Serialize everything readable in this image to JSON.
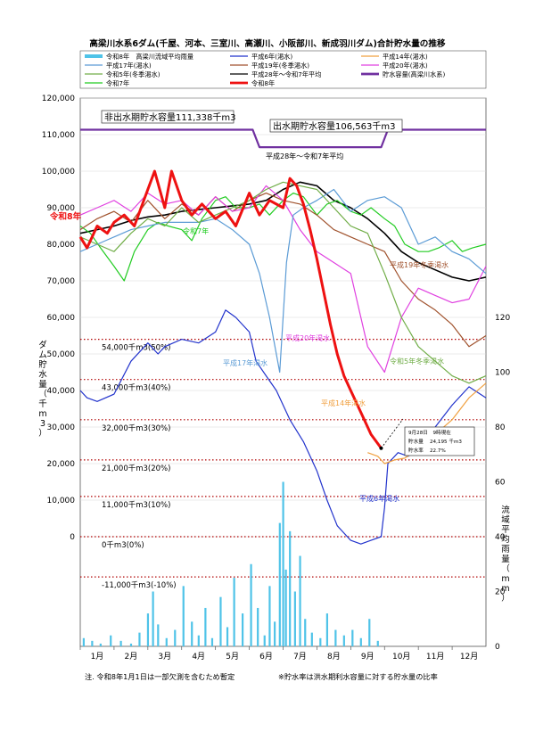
{
  "title": "高梁川水系6ダム(千屋、河本、三室川、高瀬川、小阪部川、新成羽川ダム)合計貯水量の推移",
  "legend": [
    {
      "label": "令和8年　高梁川流域平均雨量",
      "color": "#4fc3e8",
      "kind": "bar"
    },
    {
      "label": "平成6年(渇水)",
      "color": "#2233cc",
      "kind": "line"
    },
    {
      "label": "平成14年(渇水)",
      "color": "#f0a040",
      "kind": "line"
    },
    {
      "label": "平成17年(渇水)",
      "color": "#5b9bd5",
      "kind": "line"
    },
    {
      "label": "平成19年(冬季渇水)",
      "color": "#a0522d",
      "kind": "line"
    },
    {
      "label": "平成20年(渇水)",
      "color": "#e040e0",
      "kind": "line"
    },
    {
      "label": "令和5年(冬季渇水)",
      "color": "#70ad47",
      "kind": "line"
    },
    {
      "label": "平成28年～令和7年平均",
      "color": "#000000",
      "kind": "line"
    },
    {
      "label": "貯水容量(高梁川水系)",
      "color": "#7030a0",
      "kind": "line"
    },
    {
      "label": "令和7年",
      "color": "#22cc22",
      "kind": "line"
    },
    {
      "label": "令和8年",
      "color": "#ee1111",
      "kind": "line"
    }
  ],
  "capacity_labels": {
    "non_flood": "非出水期貯水容量111,338千m3",
    "flood": "出水期貯水容量106,563千m3"
  },
  "annotations": {
    "r8": "令和8年",
    "r7": "令和7年",
    "avg": "平成28年～令和7年平均",
    "h19": "平成19年冬季渇水",
    "h20": "平成20年渇水",
    "h17": "平成17年渇水",
    "r5": "令和5年冬季渇水",
    "h14": "平成14年渇水",
    "h6": "平成6年渇水"
  },
  "percent_lines": [
    {
      "value": 54000,
      "label": "54,000千m3(50%)"
    },
    {
      "value": 43000,
      "label": "43,000千m3(40%)"
    },
    {
      "value": 32000,
      "label": "32,000千m3(30%)"
    },
    {
      "value": 21000,
      "label": "21,000千m3(20%)"
    },
    {
      "value": 11000,
      "label": "11,000千m3(10%)"
    },
    {
      "value": 0,
      "label": "0千m3(0%)"
    },
    {
      "value": -11000,
      "label": "-11,000千m3(-10%)"
    }
  ],
  "info_box": {
    "date_line": "9月28日　9時現在",
    "storage_label": "貯水量",
    "storage_value": "24,195 千m3",
    "rate_label": "貯水率",
    "rate_value": "22.7%"
  },
  "y_left_label": "ダム貯水量（千m3）",
  "y_right_label": "流域平均雨量（mm）",
  "notes": {
    "left": "注. 令和8年1月1日は一部欠測を含むため暫定",
    "right": "※貯水率は洪水期利水容量に対する貯水量の比率"
  },
  "chart_data": {
    "type": "line",
    "title": "高梁川水系6ダム(千屋、河本、三室川、高瀬川、小阪部川、新成羽川ダム)合計貯水量の推移",
    "x_ticks": [
      "1月",
      "2月",
      "3月",
      "4月",
      "5月",
      "6月",
      "7月",
      "8月",
      "9月",
      "10月",
      "11月",
      "12月"
    ],
    "x_unit": "month (1.0 = Jan 1)",
    "y_left_ticks": [
      120000,
      110000,
      100000,
      90000,
      80000,
      70000,
      60000,
      50000,
      40000,
      30000,
      20000,
      10000,
      0
    ],
    "y_left_lim": [
      -30000,
      120000
    ],
    "y_right_ticks": [
      0,
      20,
      40,
      60,
      80,
      100,
      120
    ],
    "y_right_lim": [
      0,
      200
    ],
    "series": [
      {
        "name": "貯水容量(高梁川水系)",
        "color": "#7030a0",
        "width": 2.2,
        "x": [
          1,
          6.1,
          6.3,
          9.9,
          10.1,
          13
        ],
        "y": [
          111338,
          111338,
          106563,
          106563,
          111338,
          111338
        ]
      },
      {
        "name": "平成28年～令和7年平均",
        "color": "#000000",
        "width": 1.6,
        "x": [
          1,
          1.5,
          2,
          2.5,
          3,
          3.5,
          4,
          4.5,
          5,
          5.5,
          6,
          6.5,
          7,
          7.5,
          8,
          8.5,
          9,
          9.5,
          10,
          10.5,
          11,
          11.5,
          12,
          12.5,
          13
        ],
        "y": [
          83000,
          84000,
          85000,
          86500,
          87500,
          88000,
          89000,
          89500,
          90000,
          90500,
          91000,
          92000,
          95000,
          97000,
          96000,
          92000,
          90000,
          87000,
          83000,
          78000,
          75000,
          73000,
          71000,
          70000,
          71000
        ]
      },
      {
        "name": "令和7年",
        "color": "#22cc22",
        "width": 1.2,
        "x": [
          1,
          1.3,
          1.6,
          2,
          2.3,
          2.6,
          3,
          3.3,
          3.6,
          4,
          4.3,
          4.6,
          5,
          5.3,
          5.6,
          6,
          6.3,
          6.6,
          7,
          7.3,
          7.6,
          8,
          8.3,
          8.6,
          9,
          9.3,
          9.6,
          10,
          10.3,
          10.6,
          11,
          11.3,
          11.6,
          12,
          12.3,
          12.6,
          13
        ],
        "y": [
          85000,
          83000,
          79000,
          74000,
          70000,
          78000,
          84000,
          86000,
          85000,
          84000,
          81000,
          87000,
          92000,
          93000,
          90000,
          90000,
          91000,
          88000,
          92000,
          94000,
          93000,
          88000,
          91000,
          92000,
          89000,
          88000,
          90000,
          87000,
          85000,
          80000,
          78000,
          78000,
          79000,
          81000,
          78000,
          79000,
          80000
        ]
      },
      {
        "name": "平成19年(冬季渇水)",
        "color": "#a0522d",
        "width": 1.2,
        "x": [
          1,
          1.5,
          2,
          2.5,
          3,
          3.5,
          4,
          4.5,
          5,
          5.5,
          6,
          6.5,
          7,
          7.5,
          8,
          8.5,
          9,
          9.5,
          10,
          10.5,
          11,
          11.5,
          12,
          12.5,
          13
        ],
        "y": [
          84000,
          87000,
          89000,
          86000,
          92000,
          87000,
          91000,
          88000,
          93000,
          89000,
          92000,
          94000,
          92000,
          91000,
          88000,
          84000,
          82000,
          80000,
          78000,
          70000,
          65000,
          62000,
          58000,
          52000,
          55000
        ]
      },
      {
        "name": "平成20年(渇水)",
        "color": "#e040e0",
        "width": 1.2,
        "x": [
          1,
          1.5,
          2,
          2.5,
          3,
          3.5,
          4,
          4.5,
          5,
          5.5,
          6,
          6.5,
          7,
          7.5,
          8,
          8.5,
          9,
          9.5,
          10,
          10.5,
          11,
          11.5,
          12,
          12.5,
          13
        ],
        "y": [
          88000,
          90000,
          92000,
          89000,
          94000,
          91000,
          92000,
          88000,
          93000,
          89000,
          90000,
          96000,
          92000,
          84000,
          78000,
          75000,
          72000,
          52000,
          45000,
          60000,
          68000,
          66000,
          64000,
          65000,
          74000
        ]
      },
      {
        "name": "平成17年(渇水)",
        "color": "#5b9bd5",
        "width": 1.2,
        "x": [
          1,
          1.5,
          2,
          2.5,
          3,
          3.5,
          4,
          4.5,
          5,
          5.5,
          6,
          6.3,
          6.6,
          6.9,
          7.1,
          7.3,
          7.6,
          8,
          8.5,
          9,
          9.5,
          10,
          10.5,
          11,
          11.5,
          12,
          12.5,
          13
        ],
        "y": [
          78000,
          80000,
          82000,
          84000,
          85000,
          86000,
          86000,
          86000,
          87000,
          84000,
          80000,
          72000,
          60000,
          45000,
          75000,
          88000,
          90000,
          92000,
          95000,
          89000,
          92000,
          93000,
          90000,
          80000,
          82000,
          78000,
          76000,
          72000
        ]
      },
      {
        "name": "平成6年(渇水)",
        "color": "#2233cc",
        "width": 1.2,
        "x": [
          1,
          1.2,
          1.5,
          2,
          2.5,
          3,
          3.3,
          3.5,
          4,
          4.5,
          5,
          5.3,
          5.6,
          6,
          6.2,
          6.5,
          6.8,
          7.2,
          7.6,
          8,
          8.3,
          8.6,
          9,
          9.3,
          9.6,
          9.9,
          10,
          10.1,
          10.4,
          10.7,
          11,
          11.5,
          12,
          12.5,
          13
        ],
        "y": [
          40000,
          38000,
          37000,
          39000,
          48000,
          53000,
          50000,
          52000,
          54000,
          53000,
          56000,
          62000,
          60000,
          56000,
          48000,
          44000,
          40000,
          32000,
          26000,
          18000,
          10000,
          3000,
          -1000,
          -2000,
          -1000,
          0,
          8000,
          20000,
          23000,
          22000,
          24000,
          30000,
          36000,
          41000,
          38000
        ]
      },
      {
        "name": "平成14年(渇水)",
        "color": "#f0a040",
        "width": 1.2,
        "x": [
          9.5,
          9.8,
          10,
          10.3,
          10.6,
          11,
          11.5,
          12,
          12.5,
          13
        ],
        "y": [
          23000,
          22000,
          20000,
          21000,
          21500,
          24000,
          28000,
          32000,
          38000,
          42000
        ]
      },
      {
        "name": "令和5年(冬季渇水)",
        "color": "#70ad47",
        "width": 1.2,
        "x": [
          1,
          1.5,
          2,
          2.5,
          3,
          3.5,
          4,
          4.5,
          5,
          5.5,
          6,
          6.5,
          7,
          7.5,
          8,
          8.5,
          9,
          9.5,
          10,
          10.5,
          11,
          11.5,
          12,
          12.5,
          13
        ],
        "y": [
          82000,
          80000,
          78000,
          83000,
          87000,
          85000,
          90000,
          86000,
          88000,
          90000,
          92000,
          95000,
          97000,
          96000,
          95000,
          90000,
          85000,
          83000,
          72000,
          60000,
          52000,
          48000,
          44000,
          42000,
          44000
        ]
      },
      {
        "name": "令和8年",
        "color": "#ee1111",
        "width": 3,
        "x": [
          1,
          1.2,
          1.5,
          1.8,
          2,
          2.3,
          2.6,
          3,
          3.2,
          3.5,
          3.7,
          4,
          4.3,
          4.6,
          5,
          5.3,
          5.6,
          6,
          6.3,
          6.6,
          7,
          7.2,
          7.4,
          7.6,
          7.8,
          8,
          8.2,
          8.4,
          8.6,
          8.8,
          9,
          9.2,
          9.4,
          9.6,
          9.9
        ],
        "y": [
          82000,
          79000,
          85000,
          83000,
          86000,
          88000,
          85000,
          95000,
          100000,
          90000,
          100000,
          92000,
          88000,
          91000,
          87000,
          89000,
          85000,
          94000,
          88000,
          92000,
          90000,
          98000,
          96000,
          91000,
          84000,
          76000,
          67000,
          58000,
          50000,
          44000,
          40000,
          36000,
          32000,
          28000,
          24195
        ]
      }
    ],
    "rainfall": {
      "name": "令和8年　高梁川流域平均雨量",
      "color": "#4fc3e8",
      "x": [
        1.1,
        1.35,
        1.6,
        1.9,
        2.2,
        2.5,
        2.75,
        3.0,
        3.15,
        3.3,
        3.55,
        3.8,
        4.05,
        4.3,
        4.5,
        4.7,
        4.9,
        5.15,
        5.35,
        5.55,
        5.8,
        6.05,
        6.25,
        6.45,
        6.6,
        6.75,
        6.9,
        7.0,
        7.08,
        7.2,
        7.35,
        7.5,
        7.65,
        7.85,
        8.1,
        8.3,
        8.55,
        8.8,
        9.05,
        9.3,
        9.55,
        9.8
      ],
      "y": [
        3,
        2,
        1,
        4,
        2,
        1,
        5,
        12,
        20,
        8,
        3,
        6,
        22,
        9,
        4,
        14,
        3,
        18,
        7,
        25,
        12,
        30,
        14,
        4,
        22,
        9,
        45,
        60,
        28,
        42,
        20,
        33,
        10,
        5,
        3,
        12,
        6,
        4,
        6,
        3,
        10,
        2
      ]
    }
  }
}
